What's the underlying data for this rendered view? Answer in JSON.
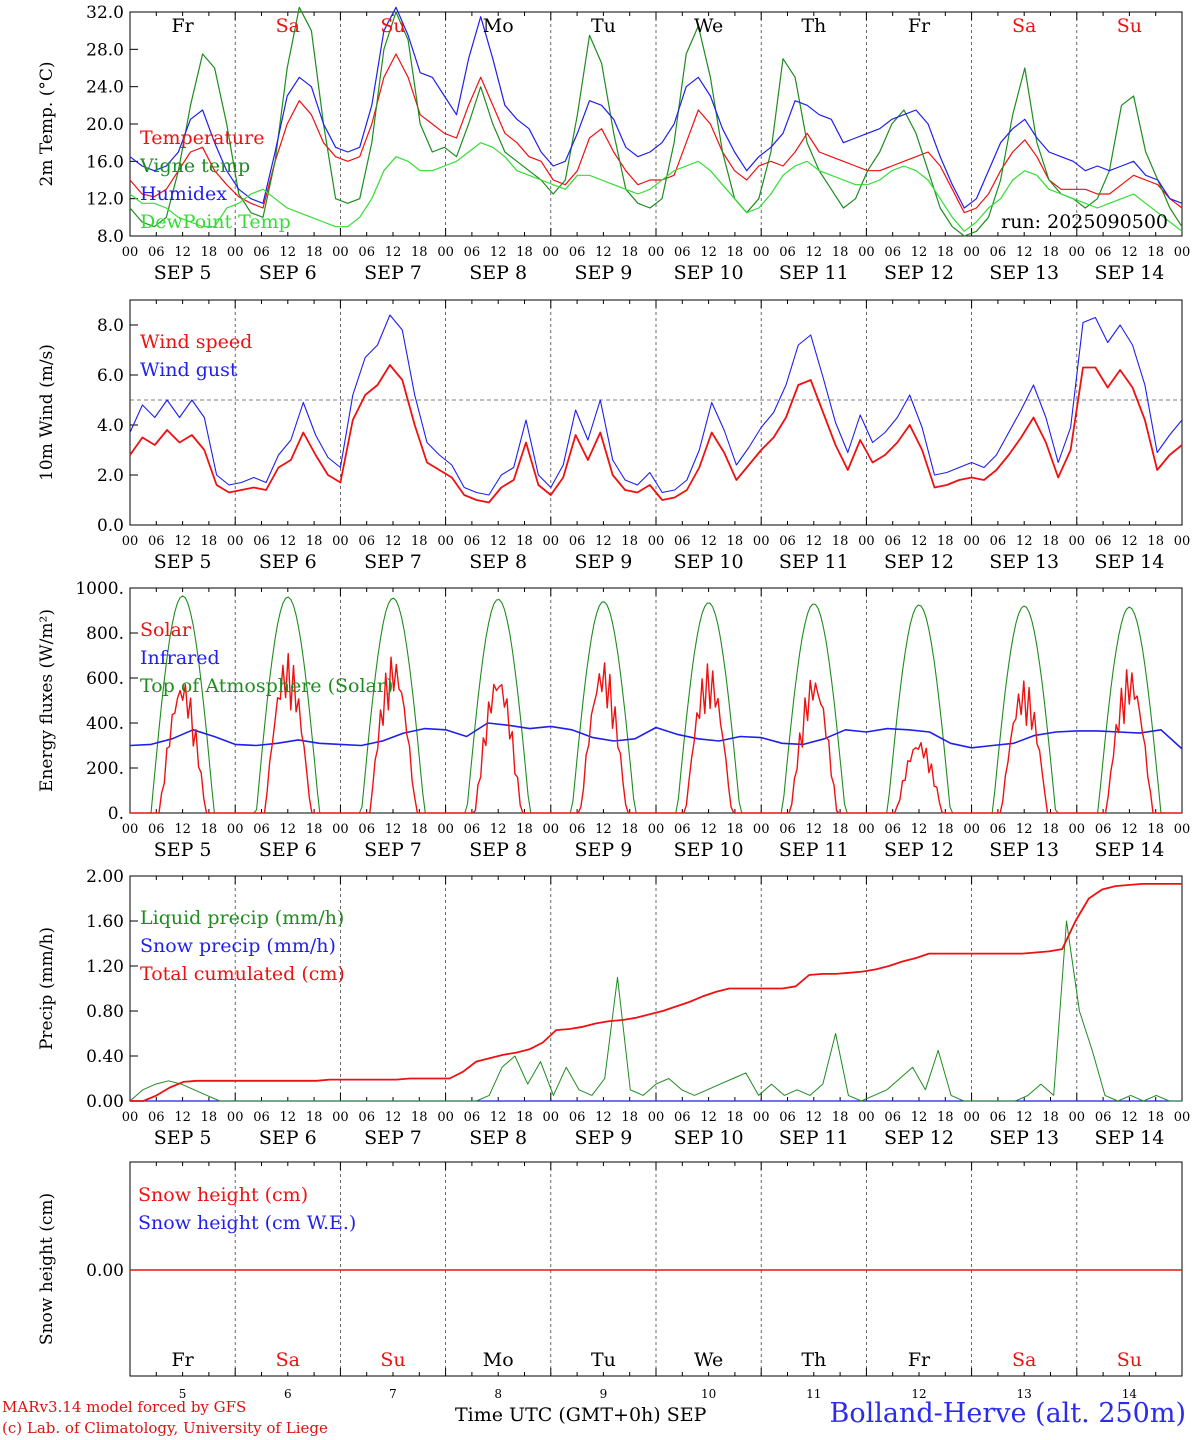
{
  "days": {
    "names": [
      "Fr",
      "Sa",
      "Su",
      "Mo",
      "Tu",
      "We",
      "Th",
      "Fr",
      "Sa",
      "Su"
    ],
    "weekend": [
      false,
      true,
      true,
      false,
      false,
      false,
      false,
      false,
      true,
      true
    ],
    "dates": [
      "SEP 5",
      "SEP 6",
      "SEP 7",
      "SEP 8",
      "SEP 9",
      "SEP 10",
      "SEP 11",
      "SEP 12",
      "SEP 13",
      "SEP 14"
    ],
    "numbers": [
      "5",
      "6",
      "7",
      "8",
      "9",
      "10",
      "11",
      "12",
      "13",
      "14"
    ],
    "hour_ticks": [
      "00",
      "06",
      "12",
      "18"
    ]
  },
  "colors": {
    "red": "#ee1111",
    "blue": "#1f1fee",
    "green": "#1e8c1e",
    "lime": "#33dd33"
  },
  "footer": {
    "credit_line1": "MARv3.14 model forced by GFS",
    "credit_line2": "(c) Lab. of Climatology, University of Liege",
    "x_caption": "Time UTC (GMT+0h) SEP",
    "location": "Bolland-Herve (alt. 250m)"
  },
  "chart_data": [
    {
      "type": "line",
      "ylabel": "2m Temp. (°C)",
      "ylim": [
        8,
        32
      ],
      "yticks": [
        "8.0",
        "12.0",
        "16.0",
        "20.0",
        "24.0",
        "28.0",
        "32.0"
      ],
      "grid": "vertical dotted at each day",
      "annotation": "run: 2025090500",
      "series": [
        {
          "name": "Temperature",
          "color": "red",
          "values": [
            14.0,
            12.5,
            12.2,
            13.0,
            15.0,
            17.0,
            17.5,
            15.0,
            13.5,
            12.2,
            11.5,
            11.0,
            16.0,
            20.0,
            22.5,
            21.0,
            18.0,
            16.5,
            16.0,
            16.5,
            20.0,
            25.0,
            27.5,
            25.0,
            21.0,
            20.0,
            19.0,
            18.5,
            22.0,
            25.0,
            22.0,
            19.0,
            18.0,
            16.5,
            16.0,
            14.0,
            13.5,
            15.0,
            18.5,
            19.5,
            17.0,
            15.0,
            13.5,
            14.0,
            14.0,
            14.5,
            18.0,
            21.5,
            20.0,
            17.0,
            15.0,
            14.0,
            15.5,
            16.0,
            15.5,
            17.0,
            19.0,
            17.0,
            16.5,
            16.0,
            15.5,
            15.0,
            15.0,
            15.5,
            16.0,
            16.5,
            17.0,
            15.5,
            13.0,
            10.5,
            11.0,
            12.5,
            15.0,
            17.0,
            18.3,
            16.5,
            14.0,
            13.0,
            13.0,
            13.0,
            12.5,
            12.5,
            13.5,
            14.5,
            14.0,
            13.5,
            12.0,
            11.0
          ]
        },
        {
          "name": "Vigne temp",
          "color": "green",
          "values": [
            11.0,
            9.5,
            9.0,
            10.0,
            15.0,
            22.0,
            27.5,
            26.0,
            20.0,
            12.5,
            10.5,
            10.0,
            16.0,
            26.0,
            32.5,
            30.0,
            20.0,
            12.0,
            11.5,
            12.0,
            18.0,
            28.0,
            32.0,
            29.0,
            20.0,
            17.0,
            17.5,
            16.5,
            20.0,
            24.0,
            20.0,
            17.0,
            16.0,
            15.0,
            14.0,
            12.5,
            14.0,
            21.0,
            29.5,
            26.5,
            19.0,
            13.0,
            11.5,
            11.0,
            12.0,
            18.0,
            27.5,
            30.5,
            25.0,
            17.0,
            12.0,
            10.5,
            12.0,
            17.0,
            27.0,
            25.0,
            18.0,
            15.0,
            13.0,
            11.0,
            12.0,
            15.0,
            17.0,
            20.0,
            21.5,
            19.0,
            15.0,
            11.0,
            9.0,
            8.0,
            8.5,
            10.0,
            14.0,
            21.0,
            26.0,
            18.0,
            14.0,
            12.5,
            12.0,
            11.0,
            12.0,
            15.0,
            22.0,
            23.0,
            17.0,
            14.0,
            11.0,
            9.0
          ]
        },
        {
          "name": "Humidex",
          "color": "blue",
          "values": [
            16.5,
            15.5,
            15.0,
            15.5,
            17.0,
            20.5,
            21.5,
            18.0,
            15.0,
            13.0,
            12.0,
            11.5,
            17.0,
            23.0,
            25.0,
            24.0,
            20.0,
            17.5,
            17.0,
            17.5,
            22.0,
            30.0,
            32.5,
            29.5,
            25.5,
            25.0,
            23.0,
            21.0,
            27.0,
            31.5,
            27.0,
            22.0,
            20.5,
            19.5,
            17.0,
            15.5,
            16.0,
            19.0,
            22.5,
            22.0,
            20.5,
            17.5,
            16.5,
            17.0,
            18.0,
            20.0,
            24.0,
            25.0,
            23.0,
            19.5,
            17.0,
            15.0,
            16.5,
            17.5,
            19.0,
            22.5,
            22.0,
            21.0,
            20.5,
            18.0,
            18.5,
            19.0,
            19.5,
            20.5,
            21.0,
            21.5,
            20.0,
            16.5,
            13.5,
            11.0,
            12.0,
            15.0,
            18.0,
            19.5,
            20.5,
            18.5,
            17.0,
            16.5,
            16.0,
            15.0,
            15.5,
            15.0,
            15.5,
            16.0,
            14.5,
            14.0,
            12.0,
            11.5
          ]
        },
        {
          "name": "DewPoint Temp",
          "color": "lime",
          "values": [
            12.5,
            11.5,
            11.5,
            11.0,
            10.0,
            9.5,
            9.0,
            9.0,
            11.0,
            11.5,
            12.5,
            13.0,
            12.0,
            11.0,
            10.5,
            10.0,
            9.5,
            9.0,
            9.0,
            10.0,
            12.0,
            15.0,
            16.5,
            16.0,
            15.0,
            15.0,
            15.5,
            16.0,
            17.0,
            18.0,
            17.5,
            16.5,
            15.0,
            14.5,
            14.0,
            13.5,
            13.0,
            14.5,
            14.5,
            14.0,
            13.5,
            13.0,
            12.5,
            13.0,
            14.0,
            15.0,
            15.5,
            16.0,
            15.0,
            13.5,
            12.0,
            10.5,
            11.0,
            12.5,
            14.5,
            15.5,
            16.0,
            15.0,
            14.5,
            14.0,
            13.5,
            13.5,
            14.0,
            15.0,
            15.5,
            15.0,
            14.0,
            12.0,
            10.0,
            8.5,
            9.5,
            11.0,
            12.0,
            14.0,
            15.0,
            14.5,
            13.0,
            12.5,
            12.0,
            11.5,
            11.0,
            11.5,
            12.0,
            12.5,
            11.5,
            10.5,
            9.5,
            8.5
          ]
        }
      ]
    },
    {
      "type": "line",
      "ylabel": "10m Wind (m/s)",
      "ylim": [
        0,
        9
      ],
      "yticks": [
        "0.0",
        "2.0",
        "4.0",
        "6.0",
        "8.0"
      ],
      "reference_line": 5.0,
      "series": [
        {
          "name": "Wind speed",
          "color": "red",
          "values": [
            2.8,
            3.5,
            3.2,
            3.8,
            3.3,
            3.6,
            3.0,
            1.6,
            1.3,
            1.4,
            1.5,
            1.4,
            2.3,
            2.6,
            3.7,
            2.8,
            2.0,
            1.7,
            4.2,
            5.2,
            5.6,
            6.4,
            5.8,
            4.0,
            2.5,
            2.2,
            1.9,
            1.2,
            1.0,
            0.9,
            1.5,
            1.8,
            3.3,
            1.6,
            1.2,
            1.9,
            3.6,
            2.6,
            3.7,
            2.0,
            1.4,
            1.3,
            1.6,
            1.0,
            1.1,
            1.4,
            2.3,
            3.7,
            2.9,
            1.8,
            2.4,
            3.0,
            3.5,
            4.3,
            5.6,
            5.8,
            4.5,
            3.2,
            2.2,
            3.4,
            2.5,
            2.8,
            3.3,
            4.0,
            3.0,
            1.5,
            1.6,
            1.8,
            1.9,
            1.8,
            2.2,
            2.8,
            3.5,
            4.3,
            3.3,
            1.9,
            3.0,
            6.3,
            6.3,
            5.5,
            6.2,
            5.5,
            4.2,
            2.2,
            2.8,
            3.2
          ]
        },
        {
          "name": "Wind gust",
          "color": "blue",
          "values": [
            3.7,
            4.8,
            4.3,
            5.0,
            4.3,
            5.0,
            4.3,
            2.0,
            1.6,
            1.7,
            1.9,
            1.7,
            2.8,
            3.4,
            4.9,
            3.6,
            2.7,
            2.3,
            5.2,
            6.7,
            7.2,
            8.4,
            7.8,
            5.2,
            3.3,
            2.8,
            2.4,
            1.5,
            1.3,
            1.2,
            2.0,
            2.3,
            4.2,
            2.0,
            1.5,
            2.4,
            4.6,
            3.4,
            5.0,
            2.6,
            1.8,
            1.6,
            2.1,
            1.3,
            1.4,
            1.8,
            3.0,
            4.9,
            3.8,
            2.4,
            3.1,
            3.9,
            4.5,
            5.6,
            7.2,
            7.6,
            5.9,
            4.1,
            2.9,
            4.4,
            3.3,
            3.7,
            4.3,
            5.2,
            3.9,
            2.0,
            2.1,
            2.3,
            2.5,
            2.3,
            2.8,
            3.7,
            4.6,
            5.6,
            4.3,
            2.5,
            3.9,
            8.1,
            8.3,
            7.3,
            8.0,
            7.2,
            5.6,
            2.9,
            3.6,
            4.2
          ]
        }
      ]
    },
    {
      "type": "line",
      "ylabel": "Energy fluxes (W/m²)",
      "ylim": [
        0,
        1000
      ],
      "yticks": [
        "0.",
        "200.",
        "400.",
        "600.",
        "800.",
        "1000."
      ],
      "series": [
        {
          "name": "Solar",
          "color": "red",
          "peaks": [
            600,
            710,
            705,
            630,
            680,
            665,
            620,
            330,
            590,
            650
          ]
        },
        {
          "name": "Infrared",
          "color": "blue",
          "values": [
            300,
            305,
            330,
            370,
            340,
            305,
            300,
            310,
            325,
            310,
            305,
            300,
            320,
            355,
            375,
            370,
            340,
            400,
            390,
            375,
            385,
            370,
            335,
            320,
            330,
            380,
            350,
            330,
            320,
            340,
            335,
            310,
            305,
            330,
            370,
            360,
            375,
            370,
            360,
            310,
            290,
            300,
            310,
            345,
            360,
            365,
            365,
            360,
            355,
            370,
            285
          ]
        },
        {
          "name": "Top of Atmosphere (Solar)",
          "color": "green",
          "peaks": [
            965,
            960,
            955,
            950,
            940,
            935,
            930,
            925,
            920,
            915
          ]
        }
      ]
    },
    {
      "type": "line",
      "ylabel": "Precip (mm/h)",
      "ylim": [
        0,
        2.0
      ],
      "yticks": [
        "0.00",
        "0.40",
        "0.80",
        "1.20",
        "1.60",
        "2.00"
      ],
      "series": [
        {
          "name": "Liquid precip (mm/h)",
          "color": "green",
          "values": [
            0.0,
            0.1,
            0.15,
            0.18,
            0.15,
            0.1,
            0.05,
            0,
            0,
            0,
            0,
            0,
            0,
            0,
            0,
            0,
            0,
            0,
            0,
            0,
            0,
            0,
            0,
            0,
            0,
            0,
            0,
            0,
            0.05,
            0.3,
            0.4,
            0.15,
            0.35,
            0.05,
            0.3,
            0.1,
            0.05,
            0.2,
            1.1,
            0.1,
            0.05,
            0.15,
            0.2,
            0.1,
            0.05,
            0.1,
            0.15,
            0.2,
            0.25,
            0.05,
            0.15,
            0.05,
            0.1,
            0.05,
            0.15,
            0.6,
            0.05,
            0.0,
            0.05,
            0.1,
            0.2,
            0.3,
            0.1,
            0.45,
            0.05,
            0,
            0,
            0,
            0,
            0,
            0.05,
            0.15,
            0.05,
            1.6,
            0.8,
            0.45,
            0.05,
            0,
            0.05,
            0,
            0.05,
            0,
            0
          ]
        },
        {
          "name": "Snow precip (mm/h)",
          "color": "blue",
          "values": [
            0,
            0
          ]
        },
        {
          "name": "Total cumulated (cm)",
          "color": "red",
          "values": [
            0.0,
            0.0,
            0.05,
            0.12,
            0.17,
            0.18,
            0.18,
            0.18,
            0.18,
            0.18,
            0.18,
            0.18,
            0.18,
            0.18,
            0.18,
            0.19,
            0.19,
            0.19,
            0.19,
            0.19,
            0.19,
            0.2,
            0.2,
            0.2,
            0.2,
            0.26,
            0.35,
            0.38,
            0.41,
            0.43,
            0.46,
            0.52,
            0.63,
            0.64,
            0.66,
            0.69,
            0.71,
            0.72,
            0.74,
            0.77,
            0.8,
            0.84,
            0.88,
            0.93,
            0.97,
            1.0,
            1.0,
            1.0,
            1.0,
            1.0,
            1.02,
            1.12,
            1.13,
            1.13,
            1.14,
            1.15,
            1.17,
            1.2,
            1.24,
            1.27,
            1.31,
            1.31,
            1.31,
            1.31,
            1.31,
            1.31,
            1.31,
            1.31,
            1.32,
            1.33,
            1.35,
            1.6,
            1.8,
            1.88,
            1.91,
            1.92,
            1.93,
            1.93,
            1.93,
            1.93
          ]
        }
      ]
    },
    {
      "type": "line",
      "ylabel": "Snow height (cm)",
      "yticks": [
        "0.00"
      ],
      "series": [
        {
          "name": "Snow height (cm)",
          "color": "red",
          "values": [
            0,
            0
          ]
        },
        {
          "name": "Snow height (cm W.E.)",
          "color": "blue",
          "values": [
            0,
            0
          ]
        }
      ]
    }
  ]
}
